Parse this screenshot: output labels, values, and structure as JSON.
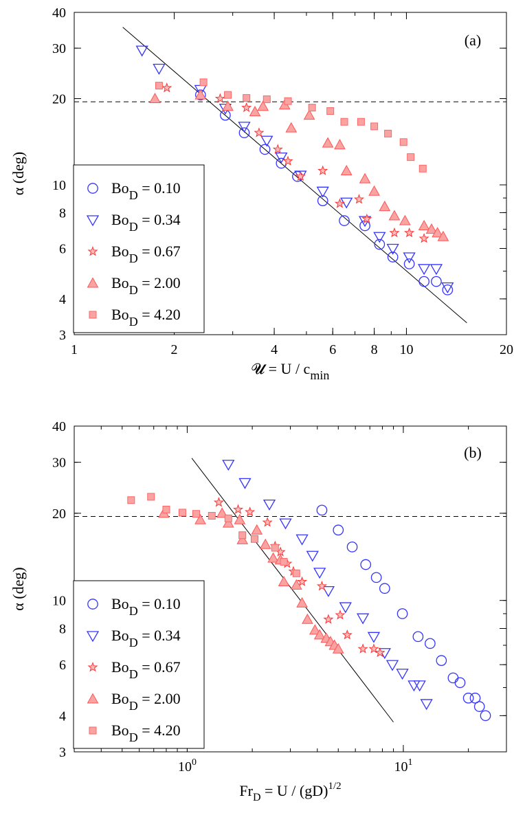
{
  "chart_data": [
    {
      "type": "scatter",
      "panel_label": "(a)",
      "ylabel": "α (deg)",
      "xlabel_main": "𝓤 = U / c",
      "xlabel_sub": "min",
      "xscale": "log",
      "yscale": "log",
      "xlim": [
        1,
        20
      ],
      "ylim": [
        3,
        40
      ],
      "xticks": [
        {
          "v": 1,
          "label": "1"
        },
        {
          "v": 2,
          "label": "2"
        },
        {
          "v": 4,
          "label": "4"
        },
        {
          "v": 6,
          "label": "6"
        },
        {
          "v": 8,
          "label": "8"
        },
        {
          "v": 10,
          "label": "10"
        },
        {
          "v": 20,
          "label": "20"
        }
      ],
      "yticks": [
        {
          "v": 3,
          "label": "3"
        },
        {
          "v": 4,
          "label": "4"
        },
        {
          "v": 6,
          "label": "6"
        },
        {
          "v": 8,
          "label": "8"
        },
        {
          "v": 10,
          "label": "10"
        },
        {
          "v": 20,
          "label": "20"
        },
        {
          "v": 30,
          "label": "30"
        },
        {
          "v": 40,
          "label": "40"
        }
      ],
      "reference_lines": [
        {
          "style": "dashed",
          "points": [
            [
              1,
              19.5
            ],
            [
              20,
              19.5
            ]
          ]
        },
        {
          "style": "solid",
          "points": [
            [
              1.4,
              35.5
            ],
            [
              15.2,
              3.3
            ]
          ]
        }
      ],
      "legend_position": "bottom-left",
      "series": [
        {
          "name": "0.10",
          "marker": "circle",
          "color": "#3333ff",
          "points": [
            [
              2.4,
              20.6
            ],
            [
              2.85,
              17.5
            ],
            [
              3.25,
              15.2
            ],
            [
              3.75,
              13.3
            ],
            [
              4.2,
              11.9
            ],
            [
              4.7,
              10.7
            ],
            [
              5.6,
              8.8
            ],
            [
              6.5,
              7.5
            ],
            [
              7.5,
              7.2
            ],
            [
              8.3,
              6.2
            ],
            [
              9.1,
              5.6
            ],
            [
              10.2,
              5.3
            ],
            [
              11.3,
              4.6
            ],
            [
              12.3,
              4.6
            ],
            [
              13.3,
              4.3
            ]
          ]
        },
        {
          "name": "0.34",
          "marker": "triangle-down",
          "color": "#3333ff",
          "points": [
            [
              1.6,
              29.5
            ],
            [
              1.8,
              25.5
            ],
            [
              2.4,
              21.5
            ],
            [
              2.85,
              18.5
            ],
            [
              3.25,
              16.0
            ],
            [
              3.8,
              14.3
            ],
            [
              4.2,
              12.5
            ],
            [
              4.8,
              10.8
            ],
            [
              5.6,
              9.5
            ],
            [
              6.6,
              8.7
            ],
            [
              7.5,
              7.5
            ],
            [
              8.3,
              6.6
            ],
            [
              9.1,
              6.0
            ],
            [
              10.2,
              5.6
            ],
            [
              11.3,
              5.1
            ],
            [
              12.3,
              5.1
            ],
            [
              13.3,
              4.4
            ]
          ]
        },
        {
          "name": "0.67",
          "marker": "star",
          "color": "#ff5555",
          "points": [
            [
              1.9,
              21.8
            ],
            [
              2.75,
              20.0
            ],
            [
              3.3,
              18.6
            ],
            [
              3.6,
              15.2
            ],
            [
              4.1,
              13.3
            ],
            [
              4.4,
              12.1
            ],
            [
              4.8,
              10.7
            ],
            [
              5.6,
              11.2
            ],
            [
              6.3,
              8.6
            ],
            [
              7.2,
              8.9
            ],
            [
              7.6,
              7.6
            ],
            [
              9.2,
              6.8
            ],
            [
              10.2,
              6.8
            ],
            [
              11.3,
              6.5
            ]
          ]
        },
        {
          "name": "2.00",
          "marker": "triangle-up",
          "color": "#ff6666",
          "points": [
            [
              1.75,
              20.0
            ],
            [
              2.4,
              20.6
            ],
            [
              2.9,
              18.8
            ],
            [
              3.5,
              18.0
            ],
            [
              3.7,
              18.8
            ],
            [
              4.3,
              19.0
            ],
            [
              4.5,
              15.8
            ],
            [
              5.1,
              17.5
            ],
            [
              5.8,
              14.0
            ],
            [
              6.3,
              13.8
            ],
            [
              6.6,
              11.2
            ],
            [
              7.5,
              10.5
            ],
            [
              8.0,
              9.5
            ],
            [
              8.6,
              8.4
            ],
            [
              9.2,
              7.8
            ],
            [
              9.9,
              7.5
            ],
            [
              11.3,
              7.2
            ],
            [
              11.9,
              7.0
            ],
            [
              12.4,
              6.8
            ],
            [
              12.9,
              6.6
            ]
          ]
        },
        {
          "name": "4.20",
          "marker": "square",
          "color": "#ff6666",
          "points": [
            [
              1.8,
              22.2
            ],
            [
              2.45,
              22.8
            ],
            [
              2.9,
              20.6
            ],
            [
              3.3,
              20.1
            ],
            [
              3.8,
              19.9
            ],
            [
              4.4,
              19.6
            ],
            [
              5.2,
              18.6
            ],
            [
              5.9,
              18.1
            ],
            [
              6.5,
              16.6
            ],
            [
              7.3,
              16.6
            ],
            [
              8.0,
              16.0
            ],
            [
              8.8,
              15.1
            ],
            [
              9.8,
              14.1
            ],
            [
              10.3,
              12.5
            ],
            [
              11.2,
              11.4
            ]
          ]
        }
      ]
    },
    {
      "type": "scatter",
      "panel_label": "(b)",
      "ylabel": "α (deg)",
      "xlabel_main": "Fr = U / (gD)",
      "xlabel_sub": "D",
      "xlabel_sup": "1/2",
      "xscale": "log",
      "yscale": "log",
      "xlim": [
        0.3,
        30
      ],
      "ylim": [
        3,
        40
      ],
      "xticks": [
        {
          "v": 1,
          "label": "10",
          "sup": "0"
        },
        {
          "v": 10,
          "label": "10",
          "sup": "1"
        }
      ],
      "yticks": [
        {
          "v": 3,
          "label": "3"
        },
        {
          "v": 4,
          "label": "4"
        },
        {
          "v": 6,
          "label": "6"
        },
        {
          "v": 8,
          "label": "8"
        },
        {
          "v": 10,
          "label": "10"
        },
        {
          "v": 20,
          "label": "20"
        },
        {
          "v": 30,
          "label": "30"
        },
        {
          "v": 40,
          "label": "40"
        }
      ],
      "reference_lines": [
        {
          "style": "dashed",
          "points": [
            [
              0.3,
              19.5
            ],
            [
              30,
              19.5
            ]
          ]
        },
        {
          "style": "solid",
          "points": [
            [
              1.05,
              31
            ],
            [
              9.0,
              3.8
            ]
          ]
        }
      ],
      "legend_position": "bottom-left",
      "series": [
        {
          "name": "0.10",
          "marker": "circle",
          "color": "#3333ff",
          "points": [
            [
              4.2,
              20.5
            ],
            [
              5.0,
              17.5
            ],
            [
              5.8,
              15.3
            ],
            [
              6.7,
              13.3
            ],
            [
              7.5,
              12.0
            ],
            [
              8.2,
              11.0
            ],
            [
              9.9,
              9.0
            ],
            [
              11.7,
              7.5
            ],
            [
              13.3,
              7.1
            ],
            [
              15.0,
              6.2
            ],
            [
              17.0,
              5.4
            ],
            [
              18.3,
              5.2
            ],
            [
              20.0,
              4.6
            ],
            [
              21.5,
              4.6
            ],
            [
              22.5,
              4.3
            ],
            [
              24.0,
              4.0
            ]
          ]
        },
        {
          "name": "0.34",
          "marker": "triangle-down",
          "color": "#3333ff",
          "points": [
            [
              1.55,
              29.5
            ],
            [
              1.85,
              25.5
            ],
            [
              2.4,
              21.5
            ],
            [
              2.85,
              18.5
            ],
            [
              3.4,
              16.3
            ],
            [
              3.8,
              14.3
            ],
            [
              4.1,
              12.5
            ],
            [
              4.5,
              10.8
            ],
            [
              5.4,
              9.5
            ],
            [
              6.5,
              8.7
            ],
            [
              7.3,
              7.5
            ],
            [
              8.2,
              6.6
            ],
            [
              8.9,
              6.0
            ],
            [
              9.9,
              5.6
            ],
            [
              11.2,
              5.1
            ],
            [
              11.9,
              5.1
            ],
            [
              12.8,
              4.4
            ]
          ]
        },
        {
          "name": "0.67",
          "marker": "star",
          "color": "#ff5555",
          "points": [
            [
              1.4,
              21.8
            ],
            [
              1.72,
              20.6
            ],
            [
              1.95,
              20.2
            ],
            [
              2.35,
              18.6
            ],
            [
              2.55,
              15.4
            ],
            [
              2.7,
              14.7
            ],
            [
              2.9,
              13.4
            ],
            [
              3.1,
              12.6
            ],
            [
              3.4,
              11.6
            ],
            [
              4.2,
              11.2
            ],
            [
              4.5,
              8.6
            ],
            [
              5.1,
              8.9
            ],
            [
              5.5,
              7.6
            ],
            [
              6.5,
              6.8
            ],
            [
              7.3,
              6.8
            ],
            [
              7.8,
              6.6
            ]
          ]
        },
        {
          "name": "2.00",
          "marker": "triangle-up",
          "color": "#ff6666",
          "points": [
            [
              0.78,
              20.0
            ],
            [
              1.15,
              19.0
            ],
            [
              1.45,
              20.0
            ],
            [
              1.55,
              18.5
            ],
            [
              1.75,
              19.0
            ],
            [
              1.8,
              16.2
            ],
            [
              2.1,
              17.5
            ],
            [
              2.3,
              15.6
            ],
            [
              2.5,
              14.0
            ],
            [
              2.7,
              13.8
            ],
            [
              2.8,
              11.6
            ],
            [
              3.2,
              11.3
            ],
            [
              3.4,
              9.8
            ],
            [
              3.6,
              8.6
            ],
            [
              3.9,
              7.9
            ],
            [
              4.1,
              7.6
            ],
            [
              4.4,
              7.4
            ],
            [
              4.6,
              7.2
            ],
            [
              4.8,
              7.0
            ],
            [
              5.0,
              6.8
            ]
          ]
        },
        {
          "name": "4.20",
          "marker": "square",
          "color": "#ff6666",
          "points": [
            [
              0.55,
              22.2
            ],
            [
              0.68,
              22.8
            ],
            [
              0.8,
              20.6
            ],
            [
              0.95,
              20.1
            ],
            [
              1.1,
              19.9
            ],
            [
              1.3,
              19.6
            ],
            [
              1.55,
              19.2
            ],
            [
              1.8,
              16.8
            ],
            [
              2.05,
              16.3
            ],
            [
              2.55,
              15.2
            ],
            [
              2.8,
              13.6
            ],
            [
              3.2,
              12.4
            ]
          ]
        }
      ]
    }
  ],
  "legend_label_prefix": "Bo",
  "legend_label_sub": "D",
  "legend_label_eq": " = "
}
